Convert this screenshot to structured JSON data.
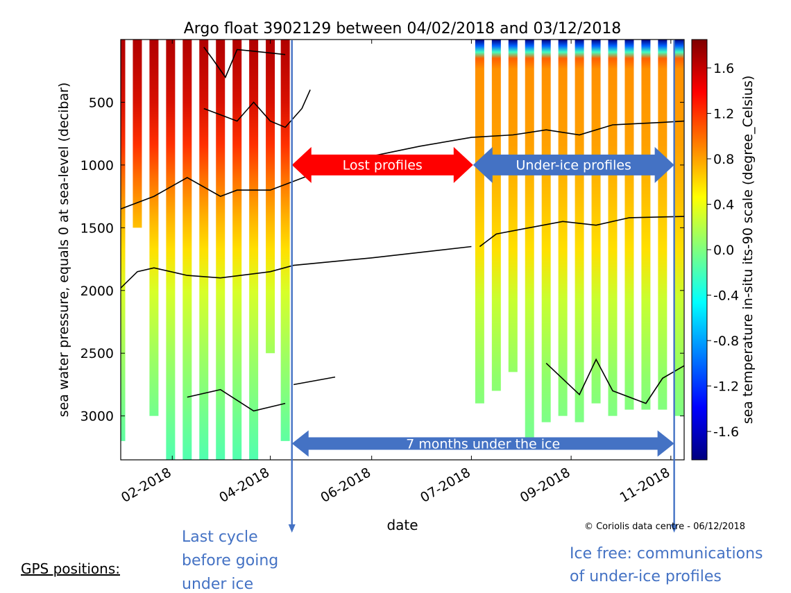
{
  "colors": {
    "annotation_blue": "#4472c4",
    "annotation_red": "#ff0000",
    "colormap": [
      "#00007f",
      "#0000ff",
      "#007fff",
      "#00ffff",
      "#7fff7f",
      "#ffff00",
      "#ff7f00",
      "#ff0000",
      "#7f0000"
    ]
  },
  "chart_data": {
    "type": "heatmap",
    "title": "Argo float 3902129 between 04/02/2018 and 03/12/2018",
    "xlabel": "date",
    "ylabel": "sea water pressure, equals 0 at sea-level (decibar)",
    "colorbar_label": "sea temperature in-situ its-90 scale (degree_Celsius)",
    "x_domain": [
      "2018-01-01",
      "2018-12-06"
    ],
    "x_ticks": [
      {
        "date": "2018-02-01",
        "label": "02-2018"
      },
      {
        "date": "2018-04-01",
        "label": "04-2018"
      },
      {
        "date": "2018-06-01",
        "label": "06-2018"
      },
      {
        "date": "2018-07-31",
        "label": "07-2018"
      },
      {
        "date": "2018-09-29",
        "label": "09-2018"
      },
      {
        "date": "2018-11-28",
        "label": "11-2018"
      }
    ],
    "ylim": [
      3350,
      0
    ],
    "y_ticks": [
      500,
      1000,
      1500,
      2000,
      2500,
      3000
    ],
    "clim": [
      -1.85,
      1.85
    ],
    "colorbar_ticks": [
      -1.6,
      -1.2,
      -0.8,
      -0.4,
      0.0,
      0.4,
      0.8,
      1.2,
      1.6
    ],
    "profiles": [
      {
        "date": "2018-01-01",
        "max_depth": 3200
      },
      {
        "date": "2018-01-11",
        "max_depth": 1500
      },
      {
        "date": "2018-01-21",
        "max_depth": 3000
      },
      {
        "date": "2018-01-31",
        "max_depth": 3350
      },
      {
        "date": "2018-02-10",
        "max_depth": 3350
      },
      {
        "date": "2018-02-20",
        "max_depth": 3350
      },
      {
        "date": "2018-03-02",
        "max_depth": 3350
      },
      {
        "date": "2018-03-12",
        "max_depth": 3350
      },
      {
        "date": "2018-03-22",
        "max_depth": 3350
      },
      {
        "date": "2018-04-01",
        "max_depth": 2500
      },
      {
        "date": "2018-04-10",
        "max_depth": 3200
      },
      {
        "date": "2018-08-05",
        "max_depth": 2900
      },
      {
        "date": "2018-08-15",
        "max_depth": 2800
      },
      {
        "date": "2018-08-25",
        "max_depth": 2650
      },
      {
        "date": "2018-09-04",
        "max_depth": 3200
      },
      {
        "date": "2018-09-14",
        "max_depth": 3050
      },
      {
        "date": "2018-09-24",
        "max_depth": 3000
      },
      {
        "date": "2018-10-04",
        "max_depth": 3050
      },
      {
        "date": "2018-10-14",
        "max_depth": 2900
      },
      {
        "date": "2018-10-24",
        "max_depth": 3000
      },
      {
        "date": "2018-11-03",
        "max_depth": 2950
      },
      {
        "date": "2018-11-13",
        "max_depth": 2950
      },
      {
        "date": "2018-11-23",
        "max_depth": 2950
      },
      {
        "date": "2018-12-03",
        "max_depth": 3000
      }
    ],
    "contours": [
      [
        [
          "2018-02-20",
          60
        ],
        [
          "2018-02-25",
          150
        ],
        [
          "2018-03-05",
          300
        ],
        [
          "2018-03-12",
          80
        ],
        [
          "2018-03-20",
          90
        ],
        [
          "2018-04-10",
          120
        ]
      ],
      [
        [
          "2018-02-20",
          550
        ],
        [
          "2018-03-02",
          600
        ],
        [
          "2018-03-12",
          650
        ],
        [
          "2018-03-22",
          500
        ],
        [
          "2018-04-01",
          650
        ],
        [
          "2018-04-10",
          700
        ],
        [
          "2018-04-20",
          550
        ],
        [
          "2018-04-25",
          400
        ]
      ],
      [
        [
          "2018-01-01",
          1350
        ],
        [
          "2018-01-21",
          1250
        ],
        [
          "2018-02-10",
          1100
        ],
        [
          "2018-03-02",
          1250
        ],
        [
          "2018-03-12",
          1200
        ],
        [
          "2018-04-01",
          1200
        ],
        [
          "2018-05-01",
          1050
        ],
        [
          "2018-06-01",
          930
        ],
        [
          "2018-06-30",
          850
        ],
        [
          "2018-07-31",
          780
        ],
        [
          "2018-08-25",
          760
        ],
        [
          "2018-09-14",
          720
        ],
        [
          "2018-10-04",
          760
        ],
        [
          "2018-10-24",
          680
        ],
        [
          "2018-11-23",
          660
        ],
        [
          "2018-12-06",
          650
        ]
      ],
      [
        [
          "2018-01-01",
          1980
        ],
        [
          "2018-01-11",
          1850
        ],
        [
          "2018-01-21",
          1820
        ],
        [
          "2018-02-10",
          1880
        ],
        [
          "2018-03-02",
          1900
        ],
        [
          "2018-04-01",
          1850
        ],
        [
          "2018-04-15",
          1800
        ],
        [
          "2018-06-01",
          1740
        ],
        [
          "2018-07-31",
          1650
        ]
      ],
      [
        [
          "2018-08-05",
          1650
        ],
        [
          "2018-08-15",
          1550
        ],
        [
          "2018-09-04",
          1500
        ],
        [
          "2018-09-24",
          1450
        ],
        [
          "2018-10-14",
          1480
        ],
        [
          "2018-11-03",
          1420
        ],
        [
          "2018-12-06",
          1410
        ]
      ],
      [
        [
          "2018-02-10",
          2850
        ],
        [
          "2018-03-02",
          2790
        ],
        [
          "2018-03-22",
          2960
        ],
        [
          "2018-04-10",
          2900
        ]
      ],
      [
        [
          "2018-04-15",
          2750
        ],
        [
          "2018-05-10",
          2690
        ]
      ],
      [
        [
          "2018-09-14",
          2580
        ],
        [
          "2018-10-04",
          2830
        ],
        [
          "2018-10-14",
          2550
        ],
        [
          "2018-10-24",
          2800
        ],
        [
          "2018-11-13",
          2900
        ],
        [
          "2018-11-23",
          2700
        ],
        [
          "2018-12-06",
          2600
        ]
      ]
    ],
    "annotations": {
      "lost_profiles": {
        "label": "Lost profiles",
        "from": "2018-04-14",
        "to": "2018-08-01",
        "depth": 1000
      },
      "under_ice_profiles": {
        "label": "Under-ice profiles",
        "from": "2018-08-01",
        "to": "2018-11-30",
        "depth": 1000
      },
      "months_under_ice": {
        "label": "7 months under the ice",
        "from": "2018-04-14",
        "to": "2018-11-30",
        "depth": 3220
      },
      "last_cycle_marker": {
        "date": "2018-04-14",
        "label_lines": [
          "Last cycle",
          "before going",
          "under ice"
        ]
      },
      "ice_free_marker": {
        "date": "2018-11-30",
        "label_lines": [
          "Ice free: communications",
          "of under-ice profiles"
        ]
      }
    }
  },
  "copyright": "© Coriolis data centre - 06/12/2018",
  "gps_label": "GPS positions:"
}
